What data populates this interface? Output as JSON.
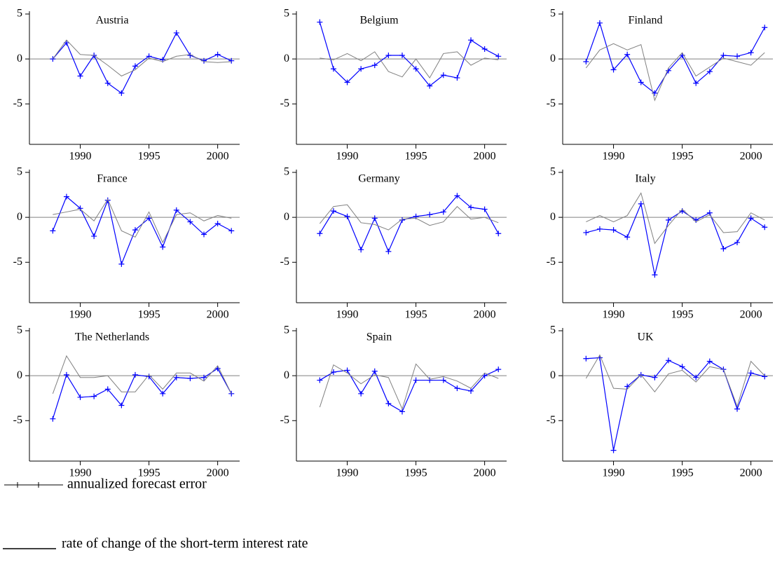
{
  "legend": {
    "series": [
      {
        "name": "annualized forecast error",
        "color": "#0000ff"
      },
      {
        "name": "rate of change of the short-term interest rate",
        "color": "#808080"
      }
    ]
  },
  "chart_data": [
    {
      "type": "line",
      "title": "Austria",
      "x": [
        1988,
        1989,
        1990,
        1991,
        1992,
        1993,
        1994,
        1995,
        1996,
        1997,
        1998,
        1999,
        2000,
        2001
      ],
      "xlim": [
        1986.3,
        2001.6
      ],
      "xticks": [
        1990,
        1995,
        2000
      ],
      "ylim": [
        -9.5,
        5
      ],
      "yticks": [
        5,
        0,
        -5
      ],
      "series": [
        {
          "values": [
            0,
            1.8,
            -1.9,
            0.4,
            -2.7,
            -3.8,
            -0.8,
            0.3,
            -0.1,
            2.9,
            0.4,
            -0.2,
            0.5,
            -0.2
          ]
        },
        {
          "values": [
            0,
            2.1,
            0.5,
            0.4,
            -0.7,
            -1.9,
            -1.2,
            0.1,
            -0.3,
            0.3,
            0.5,
            -0.3,
            -0.4,
            -0.3
          ]
        }
      ]
    },
    {
      "type": "line",
      "title": "Belgium",
      "x": [
        1988,
        1989,
        1990,
        1991,
        1992,
        1993,
        1994,
        1995,
        1996,
        1997,
        1998,
        1999,
        2000,
        2001
      ],
      "xlim": [
        1986.3,
        2001.6
      ],
      "xticks": [
        1990,
        1995,
        2000
      ],
      "ylim": [
        -9.5,
        5
      ],
      "yticks": [
        5,
        0,
        -5
      ],
      "series": [
        {
          "values": [
            4.1,
            -1.1,
            -2.6,
            -1.1,
            -0.7,
            0.4,
            0.4,
            -1.1,
            -3.0,
            -1.8,
            -2.1,
            2.1,
            1.1,
            0.3
          ]
        },
        {
          "values": [
            0.1,
            -0.1,
            0.6,
            -0.2,
            0.8,
            -1.4,
            -2.0,
            0,
            -2.1,
            0.6,
            0.8,
            -0.7,
            0.1,
            -0.1
          ]
        }
      ]
    },
    {
      "type": "line",
      "title": "Finland",
      "x": [
        1988,
        1989,
        1990,
        1991,
        1992,
        1993,
        1994,
        1995,
        1996,
        1997,
        1998,
        1999,
        2000,
        2001
      ],
      "xlim": [
        1986.3,
        2001.6
      ],
      "xticks": [
        1990,
        1995,
        2000
      ],
      "ylim": [
        -9.5,
        5
      ],
      "yticks": [
        5,
        0,
        -5
      ],
      "series": [
        {
          "values": [
            -0.3,
            4.0,
            -1.2,
            0.5,
            -2.6,
            -3.8,
            -1.3,
            0.4,
            -2.7,
            -1.4,
            0.4,
            0.3,
            0.7,
            3.5
          ]
        },
        {
          "values": [
            -1.0,
            1.0,
            1.7,
            1.0,
            1.6,
            -4.6,
            -1.0,
            0.7,
            -1.9,
            -0.9,
            0.1,
            -0.3,
            -0.7,
            0.7
          ]
        }
      ]
    },
    {
      "type": "line",
      "title": "France",
      "x": [
        1988,
        1989,
        1990,
        1991,
        1992,
        1993,
        1994,
        1995,
        1996,
        1997,
        1998,
        1999,
        2000,
        2001
      ],
      "xlim": [
        1986.3,
        2001.6
      ],
      "xticks": [
        1990,
        1995,
        2000
      ],
      "ylim": [
        -9.5,
        5
      ],
      "yticks": [
        5,
        0,
        -5
      ],
      "series": [
        {
          "values": [
            -1.5,
            2.3,
            1.0,
            -2.1,
            1.9,
            -5.2,
            -1.4,
            -0.1,
            -3.3,
            0.8,
            -0.5,
            -1.9,
            -0.7,
            -1.5
          ]
        },
        {
          "values": [
            0.3,
            0.6,
            0.9,
            -0.4,
            2.0,
            -1.5,
            -2.2,
            0.6,
            -2.8,
            0.3,
            0.5,
            -0.4,
            0.2,
            -0.1
          ]
        }
      ]
    },
    {
      "type": "line",
      "title": "Germany",
      "x": [
        1988,
        1989,
        1990,
        1991,
        1992,
        1993,
        1994,
        1995,
        1996,
        1997,
        1998,
        1999,
        2000,
        2001
      ],
      "xlim": [
        1986.3,
        2001.6
      ],
      "xticks": [
        1990,
        1995,
        2000
      ],
      "ylim": [
        -9.5,
        5
      ],
      "yticks": [
        5,
        0,
        -5
      ],
      "series": [
        {
          "values": [
            -1.8,
            0.7,
            0.1,
            -3.6,
            -0.1,
            -3.8,
            -0.3,
            0.1,
            0.3,
            0.6,
            2.4,
            1.1,
            0.9,
            -1.8
          ]
        },
        {
          "values": [
            -0.7,
            1.2,
            1.4,
            -0.6,
            -0.8,
            -1.4,
            -0.2,
            -0.1,
            -0.9,
            -0.5,
            1.2,
            -0.2,
            0,
            -0.6
          ]
        }
      ]
    },
    {
      "type": "line",
      "title": "Italy",
      "x": [
        1988,
        1989,
        1990,
        1991,
        1992,
        1993,
        1994,
        1995,
        1996,
        1997,
        1998,
        1999,
        2000,
        2001
      ],
      "xlim": [
        1986.3,
        2001.6
      ],
      "xticks": [
        1990,
        1995,
        2000
      ],
      "ylim": [
        -9.5,
        5
      ],
      "yticks": [
        5,
        0,
        -5
      ],
      "series": [
        {
          "values": [
            -1.7,
            -1.3,
            -1.4,
            -2.2,
            1.5,
            -6.4,
            -0.3,
            0.7,
            -0.3,
            0.5,
            -3.5,
            -2.8,
            -0.1,
            -1.1
          ]
        },
        {
          "values": [
            -0.5,
            0.2,
            -0.5,
            0.2,
            2.7,
            -2.9,
            -0.9,
            0.9,
            -0.5,
            0.3,
            -1.7,
            -1.6,
            0.5,
            -0.3
          ]
        }
      ]
    },
    {
      "type": "line",
      "title": "The Netherlands",
      "x": [
        1988,
        1989,
        1990,
        1991,
        1992,
        1993,
        1994,
        1995,
        1996,
        1997,
        1998,
        1999,
        2000,
        2001
      ],
      "xlim": [
        1986.3,
        2001.6
      ],
      "xticks": [
        1990,
        1995,
        2000
      ],
      "ylim": [
        -9.5,
        5
      ],
      "yticks": [
        5,
        0,
        -5
      ],
      "series": [
        {
          "values": [
            -4.8,
            0.1,
            -2.4,
            -2.3,
            -1.5,
            -3.3,
            0.1,
            -0.1,
            -2.0,
            -0.2,
            -0.3,
            -0.2,
            0.8,
            -2.0
          ]
        },
        {
          "values": [
            -2.0,
            2.2,
            -0.2,
            -0.2,
            0,
            -1.8,
            -1.8,
            0.1,
            -1.5,
            0.3,
            0.3,
            -0.6,
            1.1,
            -2.0
          ]
        }
      ]
    },
    {
      "type": "line",
      "title": "Spain",
      "x": [
        1988,
        1989,
        1990,
        1991,
        1992,
        1993,
        1994,
        1995,
        1996,
        1997,
        1998,
        1999,
        2000,
        2001
      ],
      "xlim": [
        1986.3,
        2001.6
      ],
      "xticks": [
        1990,
        1995,
        2000
      ],
      "ylim": [
        -9.5,
        5
      ],
      "yticks": [
        5,
        0,
        -5
      ],
      "series": [
        {
          "values": [
            -0.5,
            0.4,
            0.6,
            -2.0,
            0.5,
            -3.1,
            -4.0,
            -0.5,
            -0.5,
            -0.5,
            -1.4,
            -1.7,
            0,
            0.7
          ]
        },
        {
          "values": [
            -3.5,
            1.2,
            0.3,
            -0.9,
            0.1,
            -0.2,
            -3.7,
            1.3,
            -0.4,
            -0.1,
            -0.6,
            -1.4,
            0.3,
            -0.3
          ]
        }
      ]
    },
    {
      "type": "line",
      "title": "UK",
      "x": [
        1988,
        1989,
        1990,
        1991,
        1992,
        1993,
        1994,
        1995,
        1996,
        1997,
        1998,
        1999,
        2000,
        2001
      ],
      "xlim": [
        1986.3,
        2001.6
      ],
      "xticks": [
        1990,
        1995,
        2000
      ],
      "ylim": [
        -9.5,
        5
      ],
      "yticks": [
        5,
        0,
        -5
      ],
      "series": [
        {
          "values": [
            1.9,
            2.0,
            -8.3,
            -1.2,
            0.1,
            -0.2,
            1.7,
            1.0,
            -0.2,
            1.6,
            0.7,
            -3.7,
            0.3,
            -0.1
          ]
        },
        {
          "values": [
            -0.3,
            2.3,
            -1.4,
            -1.5,
            0.1,
            -1.8,
            0.2,
            0.6,
            -0.7,
            1.0,
            0.7,
            -3.4,
            1.6,
            0
          ]
        }
      ]
    }
  ]
}
